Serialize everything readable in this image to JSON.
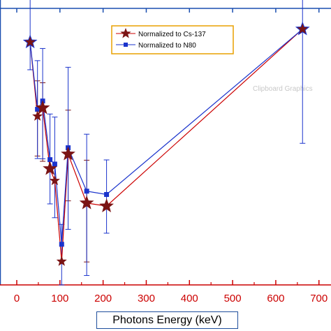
{
  "chart_data": {
    "type": "line",
    "xlabel": "Photons Energy (keV)",
    "ylabel": "",
    "title": "",
    "xlim": [
      -37,
      747
    ],
    "ylim": [
      0,
      100
    ],
    "x_ticks": [
      0,
      100,
      200,
      300,
      400,
      500,
      600,
      700
    ],
    "y_axis_labels_visible": false,
    "grid": false,
    "legend": {
      "position": "top-center-right",
      "boxed": true
    },
    "colors": {
      "axis": "#cc0000",
      "frame": "#1a4fb0",
      "cs137": "#cc0000",
      "cs137_marker": "#7a1414",
      "n80": "#1a33cc"
    },
    "watermark": "Clipboard Graphics",
    "series": [
      {
        "name": "Normalized to Cs-137",
        "marker": "star",
        "x": [
          31,
          48,
          60,
          77,
          88,
          104,
          119,
          162,
          208,
          662
        ],
        "y": [
          87.8,
          61,
          64,
          42,
          37.7,
          8.5,
          47.3,
          29.6,
          28.5,
          92.5
        ],
        "err_lo": [
          null,
          14.4,
          19.3,
          null,
          null,
          null,
          16.9,
          21.3,
          null,
          null
        ],
        "err_hi": [
          null,
          12.8,
          9.1,
          null,
          null,
          null,
          15.9,
          15.5,
          null,
          null
        ]
      },
      {
        "name": "Normalized to N80",
        "marker": "square",
        "x": [
          31,
          48,
          60,
          77,
          88,
          104,
          119,
          162,
          208,
          662
        ],
        "y": [
          87.8,
          63.5,
          66.5,
          45.3,
          43.7,
          14.7,
          49.6,
          33.9,
          32.7,
          92.5
        ],
        "err_lo": [
          10,
          17.8,
          20.9,
          16,
          19.4,
          14.7,
          29.5,
          30.5,
          14,
          41.3
        ],
        "err_hi": [
          37.3,
          17.6,
          19,
          16.5,
          17,
          7.2,
          29.1,
          20.6,
          12.5,
          17.8
        ]
      }
    ]
  }
}
